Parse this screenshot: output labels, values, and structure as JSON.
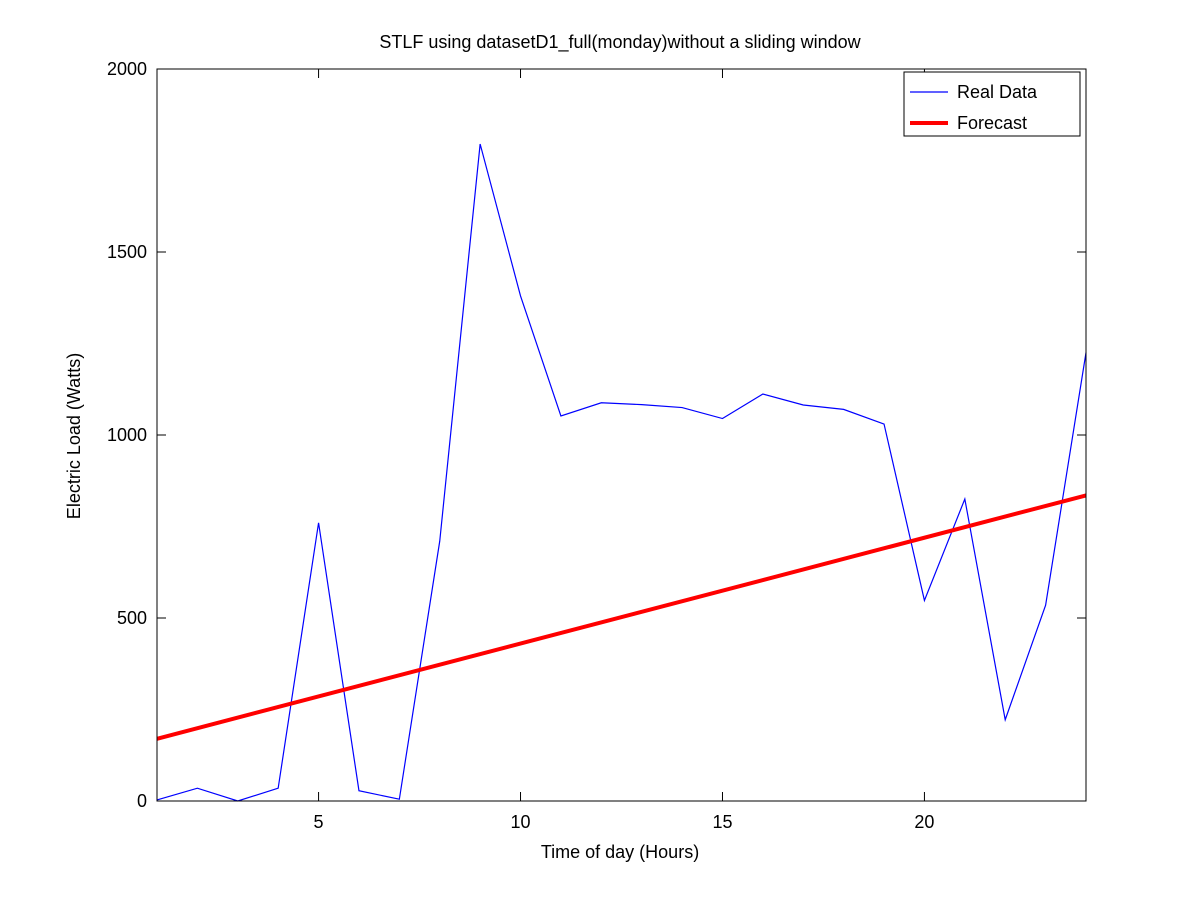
{
  "chart_data": {
    "type": "line",
    "title": "STLF using datasetD1_full(monday)without a sliding window",
    "xlabel": "Time of day (Hours)",
    "ylabel": "Electric Load (Watts)",
    "xlim": [
      1,
      24
    ],
    "ylim": [
      0,
      2000
    ],
    "xticks": [
      5,
      10,
      15,
      20
    ],
    "yticks": [
      0,
      500,
      1000,
      1500,
      2000
    ],
    "grid": false,
    "legend_position": "top-right",
    "series": [
      {
        "name": "Real Data",
        "color": "#0000ff",
        "linewidth": "thin",
        "x": [
          1,
          2,
          3,
          4,
          5,
          6,
          7,
          8,
          9,
          10,
          11,
          12,
          13,
          14,
          15,
          16,
          17,
          18,
          19,
          20,
          21,
          22,
          23,
          24
        ],
        "y": [
          3,
          35,
          0,
          35,
          760,
          28,
          5,
          710,
          1795,
          1380,
          1052,
          1088,
          1083,
          1075,
          1045,
          1112,
          1082,
          1070,
          1030,
          548,
          825,
          222,
          535,
          1225
        ]
      },
      {
        "name": "Forecast",
        "color": "#ff0000",
        "linewidth": "thick",
        "x": [
          1,
          24
        ],
        "y": [
          170,
          835
        ]
      }
    ]
  }
}
